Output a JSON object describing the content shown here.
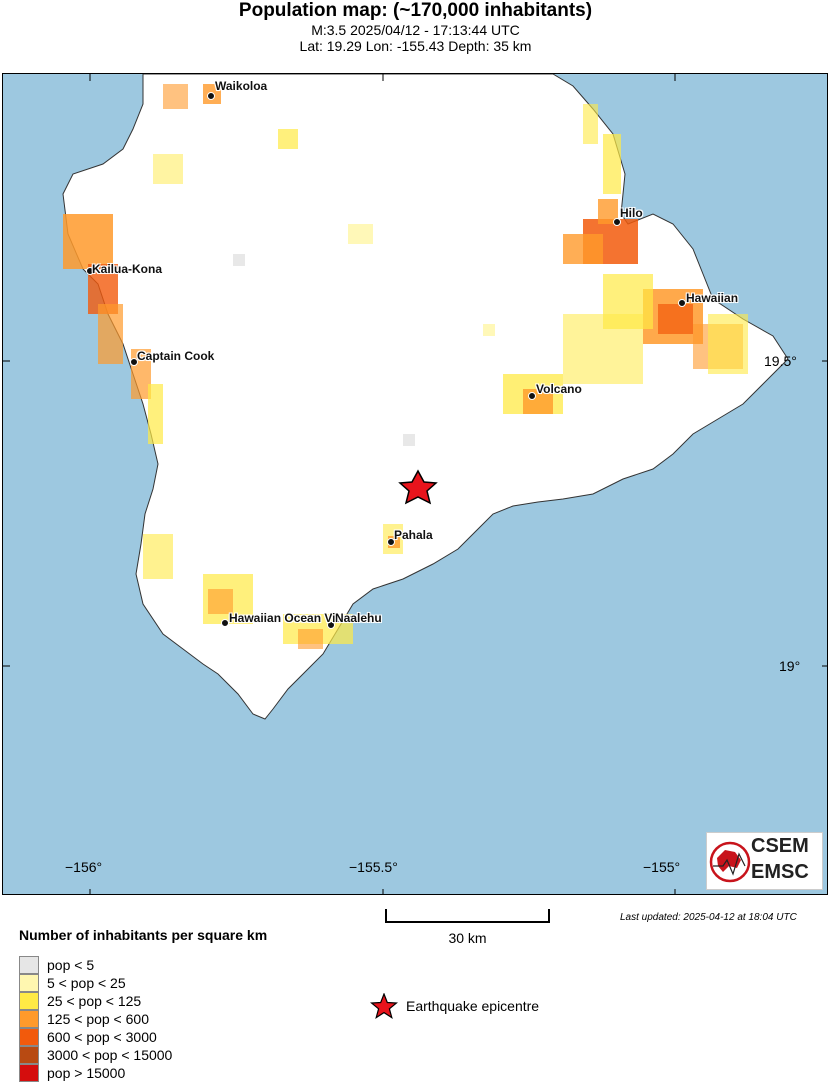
{
  "header": {
    "title": "Population map: (~170,000 inhabitants)",
    "line1": "M:3.5 2025/04/12 - 17:13:44 UTC",
    "line2": "Lat: 19.29 Lon: -155.43 Depth: 35 km"
  },
  "map": {
    "colors": {
      "ocean": "#9dc8e0",
      "land": "#ffffff",
      "epicentre": "#e8141c"
    },
    "lon_labels": [
      "−156°",
      "−155.5°",
      "−155°"
    ],
    "lat_labels": [
      "19.5°",
      "19°"
    ],
    "places": {
      "waikoloa": "Waikoloa",
      "hilo": "Hilo",
      "kailua_kona": "Kailua-Kona",
      "hawaiian": "Hawaiian",
      "captain_cook": "Captain Cook",
      "volcano": "Volcano",
      "pahala": "Pahala",
      "hawaiian_ocean_view": "Hawaiian Ocean View",
      "naalehu": "Naalehu"
    },
    "logo": {
      "line1": "CSEM",
      "line2": "EMSC"
    }
  },
  "scale": {
    "label": "30 km"
  },
  "updated": "Last updated: 2025-04-12 at 18:04 UTC",
  "legend": {
    "title": "Number of inhabitants per square km",
    "items": [
      {
        "label": "pop < 5",
        "color": "#e6e6e6"
      },
      {
        "label": "5 < pop < 25",
        "color": "#fff7b0"
      },
      {
        "label": "25 < pop < 125",
        "color": "#ffea45"
      },
      {
        "label": "125 < pop < 600",
        "color": "#ff9a2b"
      },
      {
        "label": "600 < pop < 3000",
        "color": "#f25a0c"
      },
      {
        "label": "3000 < pop < 15000",
        "color": "#b84a12"
      },
      {
        "label": "pop > 15000",
        "color": "#d50d0d"
      }
    ],
    "epicentre_label": "Earthquake epicentre"
  }
}
